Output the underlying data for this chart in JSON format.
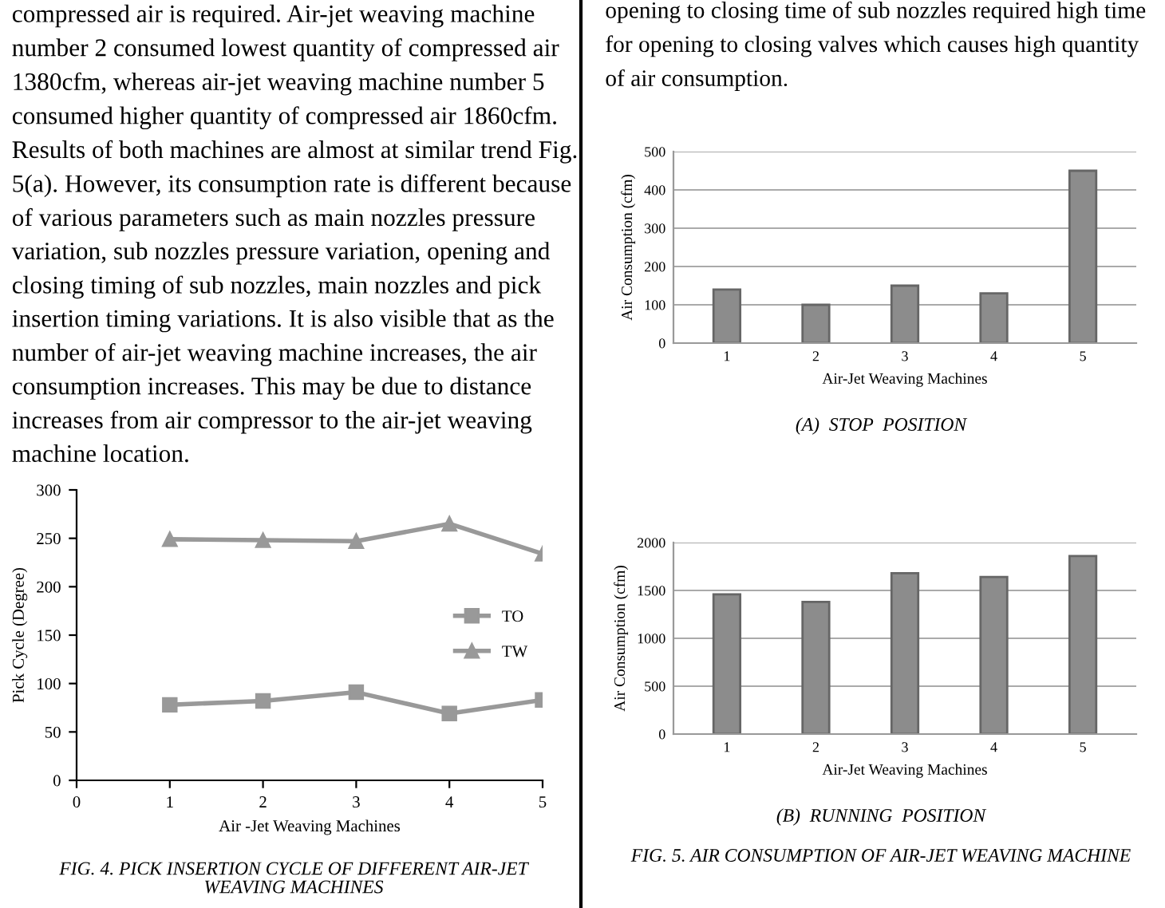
{
  "chart_data": [
    {
      "type": "other",
      "annotations": [
        "compressed air is required. Air-jet weaving machine\nnumber 2 consumed lowest quantity of compressed air\n1380cfm, whereas air-jet weaving machine number 5\nconsumed higher quantity of compressed air 1860cfm.\nResults of both machines are almost at similar trend Fig.\n5(a). However, its consumption rate is different because\nof various parameters such as main nozzles pressure\nvariation, sub nozzles pressure variation, opening and\nclosing timing of sub nozzles, main nozzles and pick\ninsertion timing variations. It is also visible that as the\nnumber of air-jet weaving machine increases, the air\nconsumption increases. This may be due to distance\nincreases from air compressor to the air-jet weaving\nmachine location."
      ]
    },
    {
      "type": "line",
      "xlabel": "Air -Jet Weaving Machines",
      "ylabel": "Pick Cycle (Degree)",
      "x": [
        1,
        2,
        3,
        4,
        5
      ],
      "xlim": [
        0,
        5
      ],
      "xticks": [
        0,
        1,
        2,
        3,
        4,
        5
      ],
      "ylim": [
        0,
        300
      ],
      "yticks": [
        0,
        50,
        100,
        150,
        200,
        250,
        300
      ],
      "grid": false,
      "legend": "center right",
      "series": [
        {
          "name": "TO",
          "color": "#999999",
          "marker": "square",
          "values": [
            78,
            82,
            91,
            69,
            83
          ]
        },
        {
          "name": "TW",
          "color": "#999999",
          "marker": "triangle",
          "values": [
            249,
            248,
            247,
            265,
            234
          ]
        }
      ],
      "annotations": [
        "FIG. 4. PICK INSERTION CYCLE OF DIFFERENT AIR-JET\nWEAVING MACHINES"
      ]
    },
    {
      "type": "other",
      "annotations": [
        "opening to closing time of sub nozzles required high time\nfor opening to closing valves which causes high quantity\nof air consumption."
      ]
    },
    {
      "type": "bar",
      "xlabel": "Air-Jet Weaving Machines",
      "ylabel": "Air Consumption (cfm)",
      "categories": [
        "1",
        "2",
        "3",
        "4",
        "5"
      ],
      "values": [
        140,
        100,
        150,
        130,
        450
      ],
      "color": "#8c8c8c",
      "ylim": [
        0,
        500
      ],
      "yticks": [
        0,
        100,
        200,
        300,
        400,
        500
      ],
      "grid": "y",
      "annotations": [
        "(A)  STOP  POSITION"
      ]
    },
    {
      "type": "bar",
      "xlabel": "Air-Jet Weaving Machines",
      "ylabel": "Air Consumption (cfm)",
      "categories": [
        "1",
        "2",
        "3",
        "4",
        "5"
      ],
      "values": [
        1460,
        1380,
        1680,
        1640,
        1860
      ],
      "color": "#8c8c8c",
      "ylim": [
        0,
        2000
      ],
      "yticks": [
        0,
        500,
        1000,
        1500,
        2000
      ],
      "grid": "y",
      "annotations": [
        "(B)  RUNNING  POSITION",
        "FIG. 5. AIR CONSUMPTION OF AIR-JET WEAVING MACHINE"
      ]
    }
  ]
}
